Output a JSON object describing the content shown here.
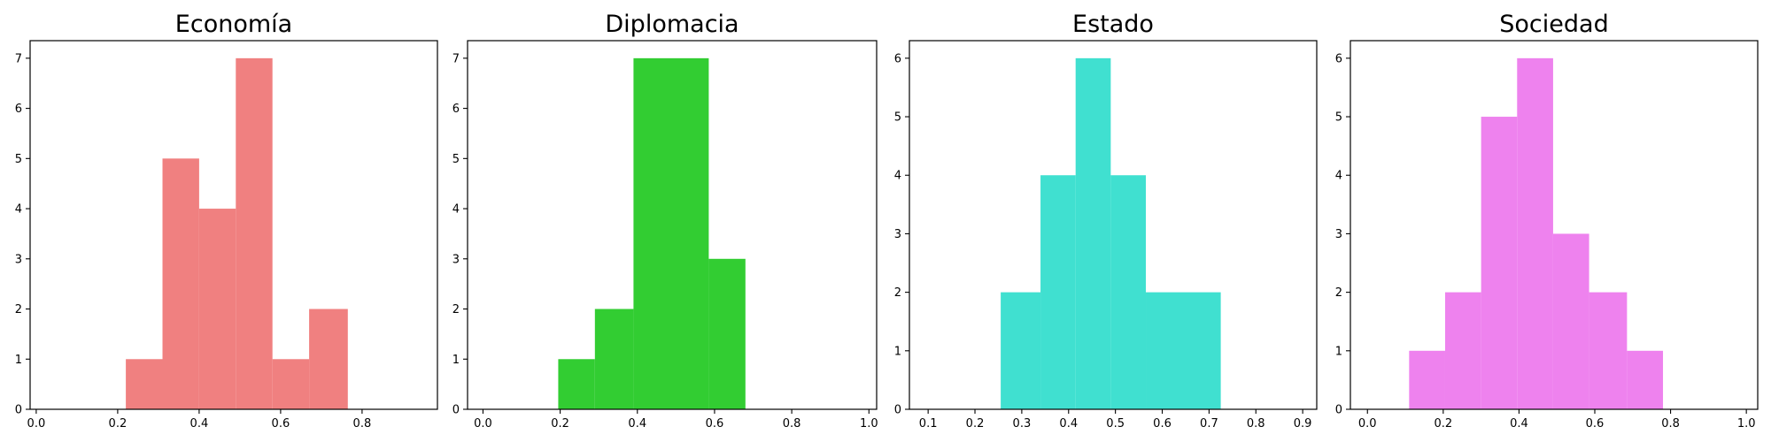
{
  "chart_data": [
    {
      "type": "histogram",
      "title": "Economía",
      "color": "#f08080",
      "xlim": [
        -0.015,
        0.985
      ],
      "ylim": [
        0,
        7.35
      ],
      "xticks": [
        0.0,
        0.2,
        0.4,
        0.6,
        0.8
      ],
      "xtick_labels": [
        "0.0",
        "0.2",
        "0.4",
        "0.6",
        "0.8"
      ],
      "yticks": [
        0,
        1,
        2,
        3,
        4,
        5,
        6,
        7
      ],
      "ytick_labels": [
        "0",
        "1",
        "2",
        "3",
        "4",
        "5",
        "6",
        "7"
      ],
      "bins": [
        {
          "x0": 0.22,
          "x1": 0.31,
          "count": 1
        },
        {
          "x0": 0.31,
          "x1": 0.4,
          "count": 5
        },
        {
          "x0": 0.4,
          "x1": 0.49,
          "count": 4
        },
        {
          "x0": 0.49,
          "x1": 0.58,
          "count": 7
        },
        {
          "x0": 0.58,
          "x1": 0.67,
          "count": 1
        },
        {
          "x0": 0.67,
          "x1": 0.765,
          "count": 2
        }
      ]
    },
    {
      "type": "histogram",
      "title": "Diplomacia",
      "color": "#32cd32",
      "xlim": [
        -0.04,
        1.02
      ],
      "ylim": [
        0,
        7.35
      ],
      "xticks": [
        0.0,
        0.2,
        0.4,
        0.6,
        0.8,
        1.0
      ],
      "xtick_labels": [
        "0.0",
        "0.2",
        "0.4",
        "0.6",
        "0.8",
        "1.0"
      ],
      "yticks": [
        0,
        1,
        2,
        3,
        4,
        5,
        6,
        7
      ],
      "ytick_labels": [
        "0",
        "1",
        "2",
        "3",
        "4",
        "5",
        "6",
        "7"
      ],
      "bins": [
        {
          "x0": 0.195,
          "x1": 0.29,
          "count": 1
        },
        {
          "x0": 0.29,
          "x1": 0.39,
          "count": 2
        },
        {
          "x0": 0.39,
          "x1": 0.585,
          "count": 7
        },
        {
          "x0": 0.585,
          "x1": 0.68,
          "count": 3
        }
      ]
    },
    {
      "type": "histogram",
      "title": "Estado",
      "color": "#40e0d0",
      "xlim": [
        0.06,
        0.93
      ],
      "ylim": [
        0,
        6.3
      ],
      "xticks": [
        0.1,
        0.2,
        0.3,
        0.4,
        0.5,
        0.6,
        0.7,
        0.8,
        0.9
      ],
      "xtick_labels": [
        "0.1",
        "0.2",
        "0.3",
        "0.4",
        "0.5",
        "0.6",
        "0.7",
        "0.8",
        "0.9"
      ],
      "yticks": [
        0,
        1,
        2,
        3,
        4,
        5,
        6
      ],
      "ytick_labels": [
        "0",
        "1",
        "2",
        "3",
        "4",
        "5",
        "6"
      ],
      "bins": [
        {
          "x0": 0.255,
          "x1": 0.34,
          "count": 2
        },
        {
          "x0": 0.34,
          "x1": 0.415,
          "count": 4
        },
        {
          "x0": 0.415,
          "x1": 0.49,
          "count": 6
        },
        {
          "x0": 0.49,
          "x1": 0.565,
          "count": 4
        },
        {
          "x0": 0.565,
          "x1": 0.725,
          "count": 2
        }
      ]
    },
    {
      "type": "histogram",
      "title": "Sociedad",
      "color": "#ee82ee",
      "xlim": [
        -0.045,
        1.03
      ],
      "ylim": [
        0,
        6.3
      ],
      "xticks": [
        0.0,
        0.2,
        0.4,
        0.6,
        0.8,
        1.0
      ],
      "xtick_labels": [
        "0.0",
        "0.2",
        "0.4",
        "0.6",
        "0.8",
        "1.0"
      ],
      "yticks": [
        0,
        1,
        2,
        3,
        4,
        5,
        6
      ],
      "ytick_labels": [
        "0",
        "1",
        "2",
        "3",
        "4",
        "5",
        "6"
      ],
      "bins": [
        {
          "x0": 0.11,
          "x1": 0.205,
          "count": 1
        },
        {
          "x0": 0.205,
          "x1": 0.3,
          "count": 2
        },
        {
          "x0": 0.3,
          "x1": 0.395,
          "count": 5
        },
        {
          "x0": 0.395,
          "x1": 0.49,
          "count": 6
        },
        {
          "x0": 0.49,
          "x1": 0.585,
          "count": 3
        },
        {
          "x0": 0.585,
          "x1": 0.685,
          "count": 2
        },
        {
          "x0": 0.685,
          "x1": 0.78,
          "count": 1
        }
      ]
    }
  ]
}
